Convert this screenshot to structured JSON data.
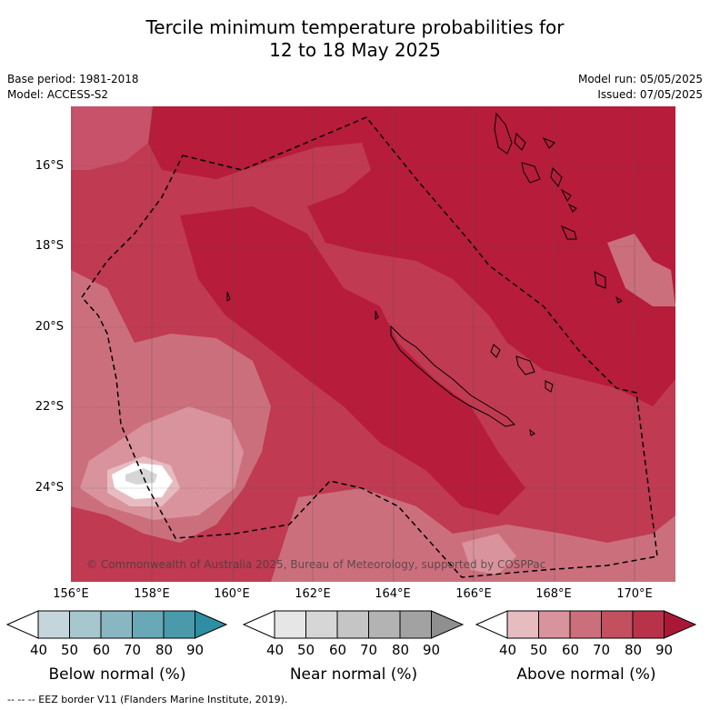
{
  "title": {
    "line1": "Tercile minimum temperature probabilities for",
    "line2": "12 to 18 May 2025"
  },
  "meta": {
    "base_period": "Base period: 1981-2018",
    "model": "Model: ACCESS-S2",
    "model_run": "Model run: 05/05/2025",
    "issued": "Issued: 07/05/2025"
  },
  "map": {
    "lat_labels": [
      "16°S",
      "18°S",
      "20°S",
      "22°S",
      "24°S"
    ],
    "lon_labels": [
      "156°E",
      "158°E",
      "160°E",
      "162°E",
      "164°E",
      "166°E",
      "168°E",
      "170°E"
    ],
    "copyright": "© Commonwealth of Australia 2025, Bureau of Meteorology, supported by COSPPac",
    "colors": {
      "above_80_90": "#b71c3a",
      "above_70_80": "#c03a52",
      "above_60_70": "#cc6f7d",
      "above_50_60": "#d9939c",
      "above_40_50": "#e7bcc1",
      "near": "#d6d6d6"
    }
  },
  "colorbars": [
    {
      "label": "Below normal (%)",
      "ticks": [
        "40",
        "50",
        "60",
        "70",
        "80",
        "90"
      ],
      "colors": [
        "#c4d6dc",
        "#a6c7cd",
        "#88b7c2",
        "#69a8b6",
        "#4a9aab",
        "#2e8ea2"
      ]
    },
    {
      "label": "Near normal (%)",
      "ticks": [
        "40",
        "50",
        "60",
        "70",
        "80",
        "90"
      ],
      "colors": [
        "#e6e6e6",
        "#d6d6d6",
        "#c5c5c5",
        "#b3b3b3",
        "#a2a2a2",
        "#8f8f8f"
      ]
    },
    {
      "label": "Above normal (%)",
      "ticks": [
        "40",
        "50",
        "60",
        "70",
        "80",
        "90"
      ],
      "colors": [
        "#e7bcc1",
        "#d9939c",
        "#cc6f7d",
        "#c2505e",
        "#b8334a",
        "#aa1838"
      ]
    }
  ],
  "footer": "--  --  -- EEZ border V11 (Flanders Marine Institute, 2019)."
}
